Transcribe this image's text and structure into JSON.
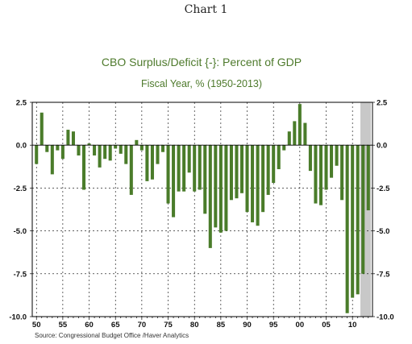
{
  "page": {
    "heading": "Chart 1"
  },
  "chart_data": {
    "type": "bar",
    "title": "CBO Surplus/Deficit {-}: Percent of GDP",
    "subtitle": "Fiscal Year, %  (1950-2013)",
    "source": "Source:  Congressional Budget Office /Haver Analytics",
    "xlabel": "",
    "ylabel": "",
    "ylim": [
      -10.0,
      2.5
    ],
    "y_ticks": [
      "2.5",
      "0.0",
      "-2.5",
      "-5.0",
      "-7.5",
      "-10.0"
    ],
    "y_tick_values": [
      2.5,
      0,
      -2.5,
      -5,
      -7.5,
      -10
    ],
    "x_tick_labels": [
      "50",
      "55",
      "60",
      "65",
      "70",
      "75",
      "80",
      "85",
      "90",
      "95",
      "00",
      "05",
      "10"
    ],
    "x_tick_years": [
      1950,
      1955,
      1960,
      1965,
      1970,
      1975,
      1980,
      1985,
      1990,
      1995,
      2000,
      2005,
      2010
    ],
    "grid": true,
    "bar_color": "#4a7c2a",
    "shade_color": "#c8c8c8",
    "shaded_period": [
      2012,
      2013
    ],
    "years": [
      1950,
      1951,
      1952,
      1953,
      1954,
      1955,
      1956,
      1957,
      1958,
      1959,
      1960,
      1961,
      1962,
      1963,
      1964,
      1965,
      1966,
      1967,
      1968,
      1969,
      1970,
      1971,
      1972,
      1973,
      1974,
      1975,
      1976,
      1977,
      1978,
      1979,
      1980,
      1981,
      1982,
      1983,
      1984,
      1985,
      1986,
      1987,
      1988,
      1989,
      1990,
      1991,
      1992,
      1993,
      1994,
      1995,
      1996,
      1997,
      1998,
      1999,
      2000,
      2001,
      2002,
      2003,
      2004,
      2005,
      2006,
      2007,
      2008,
      2009,
      2010,
      2011,
      2012,
      2013
    ],
    "values": [
      -1.1,
      1.9,
      -0.4,
      -1.7,
      -0.3,
      -0.8,
      0.9,
      0.8,
      -0.6,
      -2.6,
      0.1,
      -0.6,
      -1.3,
      -0.8,
      -0.9,
      -0.2,
      -0.5,
      -1.1,
      -2.9,
      0.3,
      -0.3,
      -2.1,
      -2.0,
      -1.1,
      -0.4,
      -3.4,
      -4.2,
      -2.7,
      -2.7,
      -1.6,
      -2.7,
      -2.6,
      -4.0,
      -6.0,
      -4.8,
      -5.1,
      -5.0,
      -3.2,
      -3.1,
      -2.8,
      -3.9,
      -4.5,
      -4.7,
      -3.9,
      -2.9,
      -2.2,
      -1.4,
      -0.3,
      0.8,
      1.4,
      2.4,
      1.3,
      -1.5,
      -3.4,
      -3.5,
      -2.6,
      -1.9,
      -1.2,
      -3.2,
      -9.8,
      -8.9,
      -8.7,
      -7.5,
      -3.8
    ]
  }
}
